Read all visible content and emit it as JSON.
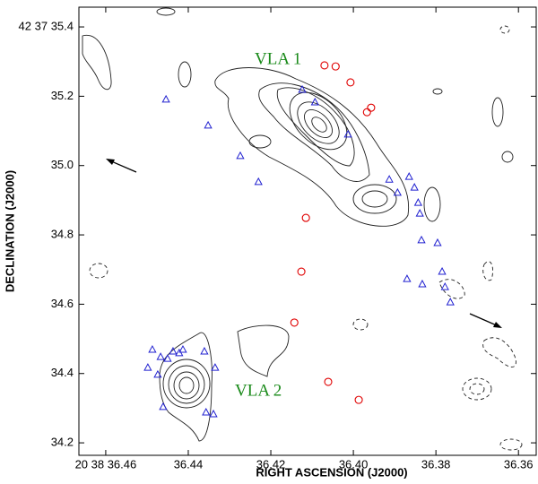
{
  "chart_data": {
    "type": "scatter",
    "xlabel": "RIGHT ASCENSION (J2000)",
    "ylabel": "DECLINATION (J2000)",
    "annotations": [
      "VLA 1",
      "VLA 2"
    ],
    "xlim": [
      36.4665,
      36.3557
    ],
    "ylim": [
      34.164,
      35.457
    ],
    "xticks": [
      {
        "value": 36.46,
        "label": "20 38 36.46"
      },
      36.44,
      36.42,
      {
        "value": 36.4,
        "label": "36.40"
      },
      36.38,
      36.36
    ],
    "yticks": [
      34.2,
      34.4,
      34.6,
      34.8,
      {
        "value": 35,
        "label": "35.0"
      },
      35.2,
      {
        "value": 35.4,
        "label": "42 37 35.4"
      }
    ],
    "series": [
      {
        "color": "#e00000",
        "marker": "circle",
        "x": [
          36.407,
          36.4043,
          36.4007,
          36.3957,
          36.3967,
          36.4115,
          36.4126,
          36.4143,
          36.4061,
          36.3987
        ],
        "y": [
          35.289,
          35.286,
          35.24,
          35.167,
          35.154,
          34.849,
          34.694,
          34.547,
          34.376,
          34.324
        ]
      },
      {
        "color": "#2020d0",
        "marker": "triangle",
        "x": [
          36.4454,
          36.4352,
          36.4274,
          36.423,
          36.4124,
          36.4093,
          36.4013,
          36.3913,
          36.3865,
          36.3852,
          36.3893,
          36.3843,
          36.3839,
          36.3835,
          36.3796,
          36.387,
          36.3833,
          36.3785,
          36.3778,
          36.3765,
          36.4487,
          36.4498,
          36.4467,
          36.445,
          36.4437,
          36.4422,
          36.4413,
          36.4474,
          36.4461,
          36.4361,
          36.4335,
          36.4357,
          36.4339
        ],
        "y": [
          35.191,
          35.116,
          35.028,
          34.953,
          35.219,
          35.183,
          35.09,
          34.96,
          34.968,
          34.937,
          34.922,
          34.893,
          34.862,
          34.785,
          34.777,
          34.673,
          34.658,
          34.694,
          34.65,
          34.606,
          34.469,
          34.417,
          34.448,
          34.443,
          34.464,
          34.459,
          34.469,
          34.397,
          34.304,
          34.464,
          34.417,
          34.288,
          34.283
        ]
      }
    ]
  }
}
